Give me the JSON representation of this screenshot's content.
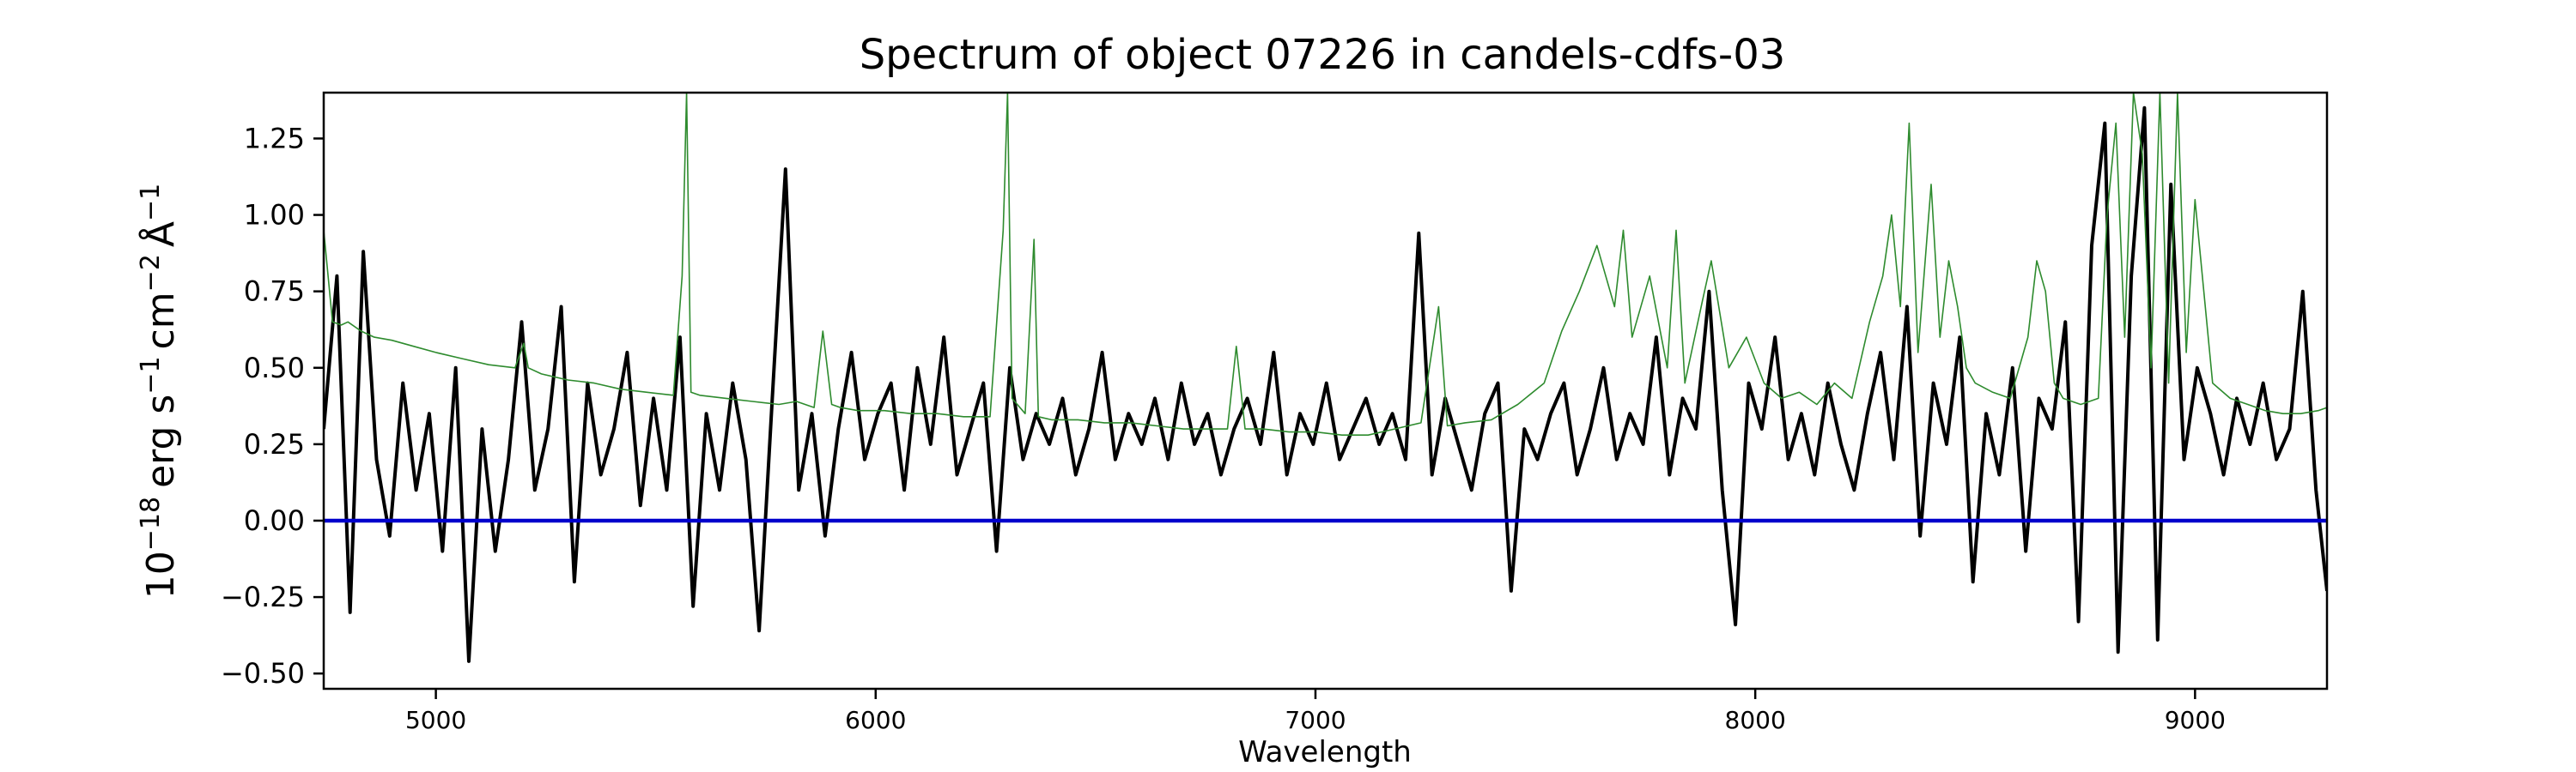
{
  "chart_data": {
    "type": "line",
    "title": "Spectrum of object 07226 in candels-cdfs-03",
    "xlabel": "Wavelength",
    "ylabel": {
      "base": "10",
      "base_exp": "−18",
      "unit1": "erg s",
      "unit1_exp": "−1",
      "unit2": "cm",
      "unit2_exp": "−2",
      "unit3": "Å",
      "unit3_exp": "−1"
    },
    "xlim": [
      4745,
      9300
    ],
    "ylim": [
      -0.55,
      1.4
    ],
    "x_ticks": [
      5000,
      6000,
      7000,
      8000,
      9000
    ],
    "x_tick_labels": [
      "5000",
      "6000",
      "7000",
      "8000",
      "9000"
    ],
    "y_ticks": [
      -0.5,
      -0.25,
      0.0,
      0.25,
      0.5,
      0.75,
      1.0,
      1.25
    ],
    "y_tick_labels": [
      "−0.50",
      "−0.25",
      "0.00",
      "0.25",
      "0.50",
      "0.75",
      "1.00",
      "1.25"
    ],
    "grid": false,
    "legend": "none",
    "series": [
      {
        "color": "#000000",
        "role": "flux",
        "x": [
          4745,
          4775,
          4805,
          4835,
          4865,
          4895,
          4925,
          4955,
          4985,
          5015,
          5045,
          5075,
          5105,
          5135,
          5165,
          5195,
          5225,
          5255,
          5285,
          5315,
          5345,
          5375,
          5405,
          5435,
          5465,
          5495,
          5525,
          5555,
          5585,
          5615,
          5645,
          5675,
          5705,
          5735,
          5765,
          5795,
          5825,
          5855,
          5885,
          5915,
          5945,
          5975,
          6005,
          6035,
          6065,
          6095,
          6125,
          6155,
          6185,
          6215,
          6245,
          6275,
          6305,
          6335,
          6365,
          6395,
          6425,
          6455,
          6485,
          6515,
          6545,
          6575,
          6605,
          6635,
          6665,
          6695,
          6725,
          6755,
          6785,
          6815,
          6845,
          6875,
          6905,
          6935,
          6965,
          6995,
          7025,
          7055,
          7085,
          7115,
          7145,
          7175,
          7205,
          7235,
          7265,
          7295,
          7325,
          7355,
          7385,
          7415,
          7445,
          7475,
          7505,
          7535,
          7565,
          7595,
          7625,
          7655,
          7685,
          7715,
          7745,
          7775,
          7805,
          7835,
          7865,
          7895,
          7925,
          7955,
          7985,
          8015,
          8045,
          8075,
          8105,
          8135,
          8165,
          8195,
          8225,
          8255,
          8285,
          8315,
          8345,
          8375,
          8405,
          8435,
          8465,
          8495,
          8525,
          8555,
          8585,
          8615,
          8645,
          8675,
          8705,
          8735,
          8765,
          8795,
          8825,
          8855,
          8885,
          8915,
          8945,
          8975,
          9005,
          9035,
          9065,
          9095,
          9125,
          9155,
          9185,
          9215,
          9245,
          9275,
          9300
        ],
        "y": [
          0.3,
          0.8,
          -0.3,
          0.88,
          0.2,
          -0.05,
          0.45,
          0.1,
          0.35,
          -0.1,
          0.5,
          -0.46,
          0.3,
          -0.1,
          0.2,
          0.65,
          0.1,
          0.3,
          0.7,
          -0.2,
          0.45,
          0.15,
          0.3,
          0.55,
          0.05,
          0.4,
          0.1,
          0.6,
          -0.28,
          0.35,
          0.1,
          0.45,
          0.2,
          -0.36,
          0.4,
          1.15,
          0.1,
          0.35,
          -0.05,
          0.3,
          0.55,
          0.2,
          0.35,
          0.45,
          0.1,
          0.5,
          0.25,
          0.6,
          0.15,
          0.3,
          0.45,
          -0.1,
          0.5,
          0.2,
          0.35,
          0.25,
          0.4,
          0.15,
          0.3,
          0.55,
          0.2,
          0.35,
          0.25,
          0.4,
          0.2,
          0.45,
          0.25,
          0.35,
          0.15,
          0.3,
          0.4,
          0.25,
          0.55,
          0.15,
          0.35,
          0.25,
          0.45,
          0.2,
          0.3,
          0.4,
          0.25,
          0.35,
          0.2,
          0.94,
          0.15,
          0.4,
          0.25,
          0.1,
          0.35,
          0.45,
          -0.23,
          0.3,
          0.2,
          0.35,
          0.45,
          0.15,
          0.3,
          0.5,
          0.2,
          0.35,
          0.25,
          0.6,
          0.15,
          0.4,
          0.3,
          0.75,
          0.1,
          -0.34,
          0.45,
          0.3,
          0.6,
          0.2,
          0.35,
          0.15,
          0.45,
          0.25,
          0.1,
          0.35,
          0.55,
          0.2,
          0.7,
          -0.05,
          0.45,
          0.25,
          0.6,
          -0.2,
          0.35,
          0.15,
          0.5,
          -0.1,
          0.4,
          0.3,
          0.65,
          -0.33,
          0.9,
          1.3,
          -0.43,
          0.8,
          1.35,
          -0.39,
          1.1,
          0.2,
          0.5,
          0.35,
          0.15,
          0.4,
          0.25,
          0.45,
          0.2,
          0.3,
          0.75,
          0.1,
          -0.23
        ]
      },
      {
        "color": "#2e8b2e",
        "role": "model",
        "x": [
          4745,
          4765,
          4785,
          4800,
          4830,
          4860,
          4900,
          4950,
          5000,
          5060,
          5120,
          5180,
          5200,
          5210,
          5240,
          5300,
          5360,
          5420,
          5480,
          5540,
          5560,
          5570,
          5580,
          5600,
          5660,
          5720,
          5780,
          5820,
          5860,
          5880,
          5900,
          5920,
          5960,
          6020,
          6080,
          6140,
          6200,
          6260,
          6290,
          6300,
          6310,
          6340,
          6360,
          6370,
          6400,
          6460,
          6520,
          6580,
          6640,
          6700,
          6760,
          6800,
          6820,
          6840,
          6880,
          6940,
          7000,
          7060,
          7120,
          7180,
          7240,
          7280,
          7300,
          7340,
          7400,
          7460,
          7520,
          7560,
          7600,
          7640,
          7680,
          7700,
          7720,
          7760,
          7800,
          7820,
          7840,
          7880,
          7900,
          7940,
          7980,
          8020,
          8060,
          8100,
          8140,
          8180,
          8220,
          8260,
          8290,
          8310,
          8330,
          8350,
          8370,
          8400,
          8420,
          8440,
          8460,
          8480,
          8500,
          8540,
          8580,
          8620,
          8640,
          8660,
          8680,
          8700,
          8740,
          8780,
          8800,
          8820,
          8840,
          8860,
          8880,
          8900,
          8920,
          8940,
          8960,
          8980,
          9000,
          9040,
          9080,
          9120,
          9160,
          9200,
          9240,
          9280,
          9300
        ],
        "y": [
          0.95,
          0.65,
          0.64,
          0.65,
          0.62,
          0.6,
          0.59,
          0.57,
          0.55,
          0.53,
          0.51,
          0.5,
          0.58,
          0.5,
          0.48,
          0.46,
          0.45,
          0.43,
          0.42,
          0.41,
          0.8,
          1.4,
          0.42,
          0.41,
          0.4,
          0.39,
          0.38,
          0.39,
          0.37,
          0.62,
          0.38,
          0.37,
          0.36,
          0.36,
          0.35,
          0.35,
          0.34,
          0.34,
          0.95,
          1.4,
          0.4,
          0.35,
          0.92,
          0.34,
          0.33,
          0.33,
          0.32,
          0.32,
          0.31,
          0.3,
          0.3,
          0.3,
          0.57,
          0.3,
          0.3,
          0.29,
          0.29,
          0.28,
          0.28,
          0.3,
          0.32,
          0.7,
          0.31,
          0.32,
          0.33,
          0.38,
          0.45,
          0.62,
          0.75,
          0.9,
          0.7,
          0.95,
          0.6,
          0.8,
          0.5,
          0.95,
          0.45,
          0.72,
          0.85,
          0.5,
          0.6,
          0.45,
          0.4,
          0.42,
          0.38,
          0.45,
          0.4,
          0.65,
          0.8,
          1.0,
          0.7,
          1.3,
          0.55,
          1.1,
          0.6,
          0.85,
          0.7,
          0.5,
          0.45,
          0.42,
          0.4,
          0.6,
          0.85,
          0.75,
          0.45,
          0.4,
          0.38,
          0.4,
          1.0,
          1.3,
          0.6,
          1.4,
          1.2,
          0.5,
          1.4,
          0.45,
          1.4,
          0.55,
          1.05,
          0.45,
          0.4,
          0.38,
          0.36,
          0.35,
          0.35,
          0.36,
          0.37
        ]
      },
      {
        "color": "#0000cc",
        "role": "zero",
        "x": [
          4745,
          9300
        ],
        "y": [
          0.0,
          0.0
        ]
      }
    ]
  }
}
